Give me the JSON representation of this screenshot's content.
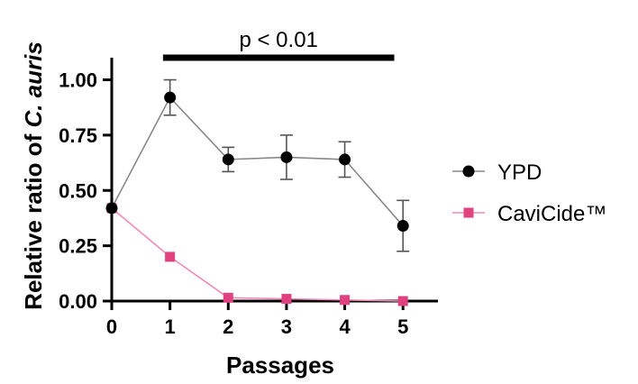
{
  "chart_data": {
    "type": "line",
    "xlabel": "Passages",
    "ylabel_prefix": "Relative ratio of ",
    "ylabel_italic": "C. auris",
    "x": [
      0,
      1,
      2,
      3,
      4,
      5
    ],
    "x_ticks": [
      "0",
      "1",
      "2",
      "3",
      "4",
      "5"
    ],
    "y_ticks": [
      "0.00",
      "0.25",
      "0.50",
      "0.75",
      "1.00"
    ],
    "ylim": [
      0,
      1.1
    ],
    "xlim": [
      0,
      5.6
    ],
    "series": [
      {
        "name": "YPD",
        "marker": "circle",
        "marker_color": "#000000",
        "line_color": "#888888",
        "values": [
          0.42,
          0.92,
          0.64,
          0.65,
          0.64,
          0.34
        ],
        "error": [
          0,
          0.08,
          0.055,
          0.1,
          0.08,
          0.115
        ]
      },
      {
        "name": "CaviCide™",
        "marker": "square",
        "marker_color": "#e0427f",
        "line_color": "#f08ab5",
        "values": [
          0.42,
          0.2,
          0.015,
          0.01,
          0.005,
          0.0
        ],
        "error": [
          0,
          0,
          0,
          0,
          0,
          0
        ]
      }
    ],
    "annotation": {
      "text": "p < 0.01",
      "x_start": 0.88,
      "x_end": 4.85
    },
    "legend_placement": "right"
  }
}
